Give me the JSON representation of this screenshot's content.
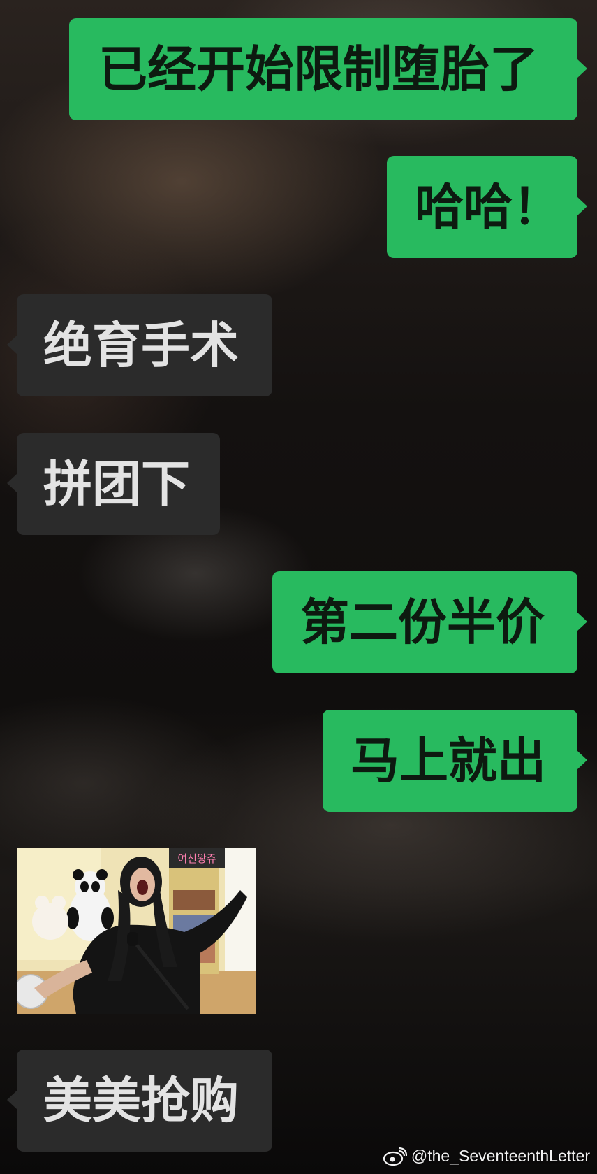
{
  "chat": {
    "messages": [
      {
        "side": "right",
        "text": "已经开始限制堕胎了"
      },
      {
        "side": "right",
        "text": "哈哈！"
      },
      {
        "side": "left",
        "text": "绝育手术"
      },
      {
        "side": "left",
        "text": "拼团下"
      },
      {
        "side": "right",
        "text": "第二份半价"
      },
      {
        "side": "right",
        "text": "马上就出"
      },
      {
        "side": "left",
        "type": "image",
        "sign_text": "여신왕쥬"
      },
      {
        "side": "left",
        "text": "美美抢购"
      }
    ]
  },
  "watermark": {
    "text": "@the_SeventeenthLetter",
    "icon": "weibo-icon"
  },
  "colors": {
    "sent_bubble": "#28ba5f",
    "received_bubble": "#2b2b2b"
  }
}
